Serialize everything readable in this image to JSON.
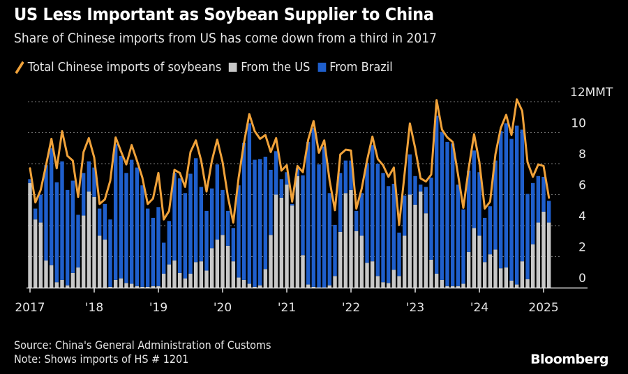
{
  "header": {
    "title": "US Less Important as Soybean Supplier to China",
    "subtitle": "Share of Chinese imports from US has come down from a third in 2017"
  },
  "legend": [
    {
      "label": "Total Chinese imports of soybeans",
      "kind": "line",
      "color": "#f0a23a"
    },
    {
      "label": "From the US",
      "kind": "bar",
      "color": "#c8c8c8"
    },
    {
      "label": "From Brazil",
      "kind": "bar",
      "color": "#1f5fcc"
    }
  ],
  "footer": {
    "source": "Source: China's General Administration of Customs",
    "note": "Note: Shows imports of HS # 1201",
    "brand": "Bloomberg"
  },
  "chart_data": {
    "type": "bar",
    "stacked": true,
    "title": "US Less Important as Soybean Supplier to China",
    "subtitle": "Share of Chinese imports from US has come down from a third in 2017",
    "ylabel": "MMT",
    "y_unit_label": "12MMT",
    "ylim": [
      0,
      12
    ],
    "yticks": [
      "0",
      "2",
      "4",
      "6",
      "8",
      "10",
      "12MMT"
    ],
    "ytick_values": [
      0,
      2,
      4,
      6,
      8,
      10,
      12
    ],
    "xticks": [
      "2017",
      "'18",
      "'19",
      "'20",
      "'21",
      "'22",
      "'23",
      "'24",
      "2025"
    ],
    "xtick_month_index": [
      0,
      12,
      24,
      36,
      48,
      60,
      72,
      84,
      96
    ],
    "x_start": "2017-01",
    "x_end": "2025-02",
    "frequency": "monthly",
    "grid": true,
    "legend_position": "top-left",
    "series": [
      {
        "name": "From the US",
        "type": "bar",
        "color": "#c8c8c8",
        "values": [
          6.75,
          4.4,
          4.2,
          1.75,
          1.45,
          0.35,
          0.5,
          0.15,
          0.95,
          1.3,
          4.65,
          6.2,
          5.85,
          3.35,
          3.1,
          0.05,
          0.5,
          0.6,
          0.3,
          0.25,
          0.1,
          0.05,
          0.05,
          0.1,
          0.1,
          0.9,
          1.5,
          1.75,
          0.95,
          0.6,
          0.9,
          1.65,
          1.7,
          1.1,
          2.55,
          3.1,
          3.4,
          2.7,
          1.7,
          0.65,
          0.5,
          0.25,
          0.05,
          0.15,
          1.2,
          3.4,
          6.0,
          5.8,
          6.65,
          5.3,
          7.2,
          2.1,
          0.2,
          0.05,
          0.0,
          0.0,
          0.15,
          0.75,
          3.6,
          6.1,
          6.3,
          3.65,
          3.35,
          1.6,
          1.7,
          0.75,
          0.35,
          0.3,
          1.15,
          0.75,
          3.35,
          6.0,
          5.35,
          6.2,
          4.8,
          1.8,
          0.9,
          0.5,
          0.1,
          0.1,
          0.1,
          0.25,
          2.3,
          3.85,
          3.35,
          1.65,
          2.15,
          2.45,
          1.25,
          1.3,
          0.45,
          0.2,
          1.7,
          0.55,
          2.8,
          4.2,
          4.9,
          4.2
        ]
      },
      {
        "name": "From Brazil",
        "type": "bar",
        "color": "#1f5fcc",
        "values": [
          0.25,
          0.7,
          1.8,
          6.15,
          7.55,
          6.45,
          7.65,
          6.15,
          5.95,
          3.4,
          2.75,
          1.95,
          1.9,
          1.75,
          2.3,
          4.35,
          8.75,
          7.9,
          7.1,
          8.0,
          7.65,
          6.55,
          5.05,
          4.4,
          5.1,
          2.0,
          2.8,
          5.65,
          6.1,
          5.5,
          6.45,
          6.7,
          4.8,
          3.85,
          3.85,
          4.85,
          2.9,
          2.25,
          2.15,
          5.95,
          8.85,
          10.35,
          8.2,
          8.15,
          7.25,
          4.2,
          2.8,
          1.2,
          0.8,
          0.1,
          0.5,
          5.15,
          9.2,
          10.25,
          7.95,
          9.1,
          5.95,
          3.3,
          3.8,
          2.1,
          1.9,
          1.3,
          2.75,
          6.45,
          7.5,
          7.25,
          7.05,
          6.25,
          5.55,
          2.8,
          2.6,
          2.6,
          1.85,
          0.45,
          1.7,
          5.3,
          10.2,
          9.55,
          9.3,
          9.2,
          6.55,
          4.8,
          5.25,
          5.0,
          4.1,
          2.85,
          3.1,
          5.75,
          8.85,
          9.3,
          9.15,
          10.25,
          8.5,
          5.5,
          3.95,
          3.0,
          2.25,
          1.4
        ]
      },
      {
        "name": "Total Chinese imports of soybeans",
        "type": "line",
        "color": "#f0a23a",
        "values": [
          7.7,
          5.5,
          6.3,
          7.9,
          9.6,
          7.7,
          10.1,
          8.5,
          8.2,
          5.85,
          8.75,
          9.65,
          8.4,
          5.4,
          5.7,
          6.9,
          9.7,
          8.8,
          7.95,
          9.2,
          8.2,
          7.1,
          5.4,
          5.75,
          7.4,
          4.4,
          4.95,
          7.6,
          7.4,
          6.5,
          8.75,
          9.5,
          8.2,
          6.2,
          8.2,
          9.55,
          8.1,
          5.85,
          4.2,
          7.1,
          9.35,
          11.2,
          10.1,
          9.6,
          9.85,
          8.75,
          9.65,
          7.55,
          7.9,
          5.55,
          7.85,
          7.45,
          9.55,
          10.75,
          8.7,
          9.5,
          6.9,
          5.0,
          8.6,
          8.9,
          8.85,
          5.1,
          6.4,
          8.2,
          9.75,
          8.3,
          7.9,
          7.15,
          7.75,
          4.05,
          7.3,
          10.6,
          9.0,
          7.05,
          6.85,
          7.3,
          12.1,
          10.2,
          9.7,
          9.4,
          7.3,
          5.15,
          7.7,
          9.9,
          8.1,
          5.1,
          5.55,
          8.6,
          10.3,
          11.15,
          9.85,
          12.15,
          11.4,
          8.1,
          7.15,
          7.95,
          7.85,
          5.8
        ]
      }
    ]
  }
}
